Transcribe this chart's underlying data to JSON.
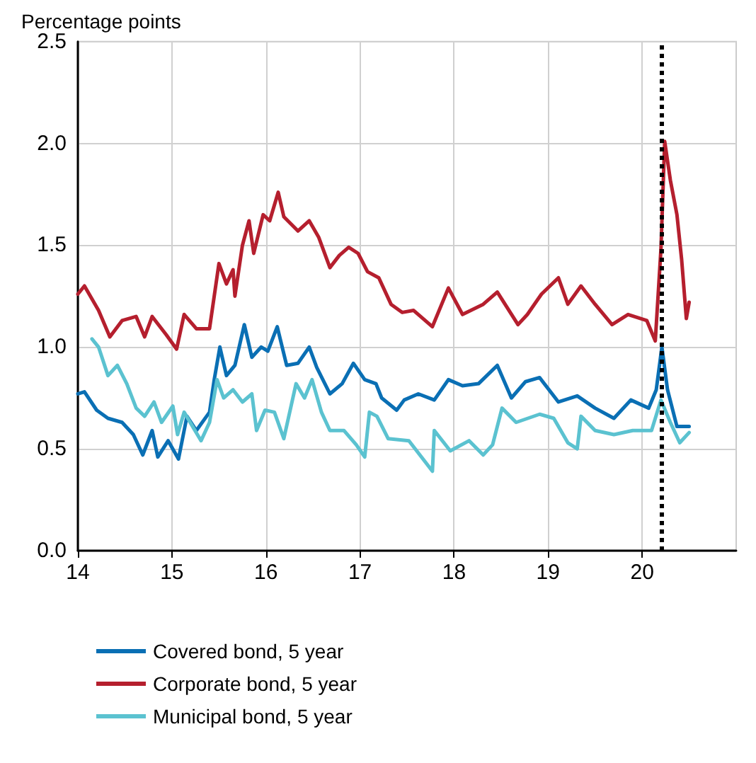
{
  "chart_data": {
    "type": "line",
    "ylabel": "Percentage points",
    "xlim": [
      14,
      21
    ],
    "xticks": [
      14,
      15,
      16,
      17,
      18,
      19,
      20
    ],
    "ylim": [
      0,
      2.5
    ],
    "yticks": [
      {
        "value": 0,
        "label": "0.0"
      },
      0.5,
      {
        "value": 1,
        "label": "1.0"
      },
      1.5,
      {
        "value": 2,
        "label": "2.0"
      },
      2.5
    ],
    "grid": true,
    "legend": "bottom",
    "line_style": "solid",
    "marker": "none",
    "ref_lines": [
      {
        "axis": "x",
        "value": 20.21,
        "color": "#000000",
        "line_style": "dotted"
      }
    ],
    "series": [
      {
        "name": "Covered bond, 5 year",
        "color": "#0a6fb4",
        "x": [
          14.0,
          14.07,
          14.2,
          14.32,
          14.47,
          14.59,
          14.69,
          14.79,
          14.85,
          14.96,
          15.07,
          15.16,
          15.26,
          15.4,
          15.45,
          15.51,
          15.58,
          15.67,
          15.77,
          15.85,
          15.95,
          16.02,
          16.12,
          16.22,
          16.34,
          16.46,
          16.54,
          16.68,
          16.81,
          16.93,
          17.05,
          17.17,
          17.23,
          17.39,
          17.47,
          17.62,
          17.79,
          17.94,
          18.09,
          18.26,
          18.46,
          18.61,
          18.76,
          18.91,
          19.11,
          19.31,
          19.5,
          19.7,
          19.88,
          20.07,
          20.15,
          20.21,
          20.27,
          20.37,
          20.5
        ],
        "values": [
          0.77,
          0.78,
          0.69,
          0.65,
          0.63,
          0.57,
          0.47,
          0.59,
          0.46,
          0.54,
          0.45,
          0.66,
          0.59,
          0.68,
          0.84,
          1.0,
          0.86,
          0.91,
          1.11,
          0.95,
          1.0,
          0.98,
          1.1,
          0.91,
          0.92,
          1.0,
          0.9,
          0.77,
          0.82,
          0.92,
          0.84,
          0.82,
          0.75,
          0.69,
          0.74,
          0.77,
          0.74,
          0.84,
          0.81,
          0.82,
          0.91,
          0.75,
          0.83,
          0.85,
          0.73,
          0.76,
          0.7,
          0.65,
          0.74,
          0.7,
          0.79,
          1.0,
          0.79,
          0.61,
          0.61
        ]
      },
      {
        "name": "Corporate bond, 5 year",
        "color": "#b51f2e",
        "x": [
          14.0,
          14.07,
          14.22,
          14.34,
          14.47,
          14.62,
          14.71,
          14.79,
          14.94,
          15.05,
          15.13,
          15.26,
          15.4,
          15.5,
          15.58,
          15.65,
          15.67,
          15.75,
          15.82,
          15.87,
          15.97,
          16.04,
          16.13,
          16.19,
          16.34,
          16.46,
          16.56,
          16.68,
          16.78,
          16.88,
          16.98,
          17.08,
          17.2,
          17.33,
          17.45,
          17.57,
          17.77,
          17.94,
          18.09,
          18.31,
          18.46,
          18.68,
          18.78,
          18.93,
          19.11,
          19.21,
          19.35,
          19.5,
          19.68,
          19.85,
          20.05,
          20.14,
          20.2,
          20.24,
          20.3,
          20.37,
          20.42,
          20.47,
          20.5
        ],
        "values": [
          1.26,
          1.3,
          1.18,
          1.05,
          1.13,
          1.15,
          1.05,
          1.15,
          1.06,
          0.99,
          1.16,
          1.09,
          1.09,
          1.41,
          1.31,
          1.38,
          1.25,
          1.5,
          1.62,
          1.46,
          1.65,
          1.62,
          1.76,
          1.64,
          1.57,
          1.62,
          1.54,
          1.39,
          1.45,
          1.49,
          1.46,
          1.37,
          1.34,
          1.21,
          1.17,
          1.18,
          1.1,
          1.29,
          1.16,
          1.21,
          1.27,
          1.11,
          1.16,
          1.26,
          1.34,
          1.21,
          1.3,
          1.21,
          1.11,
          1.16,
          1.13,
          1.03,
          1.48,
          2.01,
          1.82,
          1.65,
          1.43,
          1.14,
          1.22
        ]
      },
      {
        "name": "Municipal bond, 5 year",
        "color": "#5bc2d0",
        "x": [
          14.15,
          14.22,
          14.32,
          14.42,
          14.52,
          14.62,
          14.71,
          14.81,
          14.89,
          15.01,
          15.06,
          15.13,
          15.31,
          15.4,
          15.48,
          15.55,
          15.65,
          15.75,
          15.85,
          15.9,
          15.99,
          16.09,
          16.19,
          16.32,
          16.41,
          16.49,
          16.59,
          16.68,
          16.83,
          16.96,
          17.05,
          17.1,
          17.18,
          17.3,
          17.52,
          17.67,
          17.77,
          17.79,
          17.96,
          18.16,
          18.31,
          18.41,
          18.51,
          18.66,
          18.91,
          19.06,
          19.21,
          19.31,
          19.35,
          19.5,
          19.7,
          19.9,
          20.1,
          20.2,
          20.3,
          20.4,
          20.5
        ],
        "values": [
          1.04,
          1.0,
          0.86,
          0.91,
          0.82,
          0.7,
          0.66,
          0.73,
          0.63,
          0.71,
          0.57,
          0.68,
          0.54,
          0.63,
          0.84,
          0.75,
          0.79,
          0.73,
          0.77,
          0.59,
          0.69,
          0.68,
          0.55,
          0.82,
          0.75,
          0.84,
          0.68,
          0.59,
          0.59,
          0.52,
          0.46,
          0.68,
          0.66,
          0.55,
          0.54,
          0.45,
          0.39,
          0.59,
          0.49,
          0.54,
          0.47,
          0.52,
          0.7,
          0.63,
          0.67,
          0.65,
          0.53,
          0.5,
          0.66,
          0.59,
          0.57,
          0.59,
          0.59,
          0.74,
          0.63,
          0.53,
          0.58
        ]
      }
    ]
  }
}
